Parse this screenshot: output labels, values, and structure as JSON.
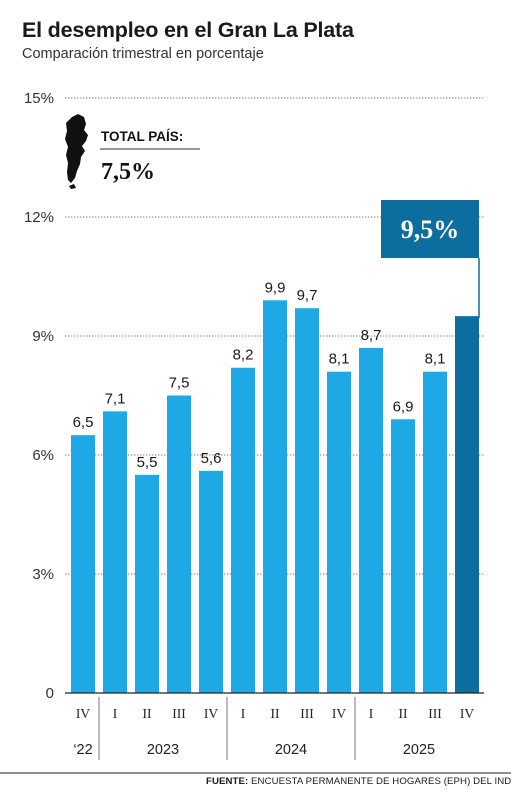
{
  "title": "El desempleo en el Gran La Plata",
  "subtitle": "Comparación trimestral en porcentaje",
  "national": {
    "label": "TOTAL PAÍS:",
    "value": "7,5%"
  },
  "highlight_label": "9,5%",
  "source": {
    "label": "FUENTE:",
    "text": "ENCUESTA PERMANENTE DE HOGARES (EPH) DEL INDEC"
  },
  "colors": {
    "bar": "#1fa8e6",
    "highlight": "#0b6e9e",
    "text": "#1a1a1a",
    "grid": "#555555"
  },
  "icons": [
    "argentina-map-icon"
  ],
  "chart_data": {
    "type": "bar",
    "ylim": [
      0,
      15
    ],
    "yticks": [
      {
        "value": 0,
        "label": "0"
      },
      {
        "value": 3,
        "label": "3%"
      },
      {
        "value": 6,
        "label": "6%"
      },
      {
        "value": 9,
        "label": "9%"
      },
      {
        "value": 12,
        "label": "12%"
      },
      {
        "value": 15,
        "label": "15%"
      }
    ],
    "categories": [
      "IV",
      "I",
      "II",
      "III",
      "IV",
      "I",
      "II",
      "III",
      "IV",
      "I",
      "II",
      "III",
      "IV"
    ],
    "values": [
      6.5,
      7.1,
      5.5,
      7.5,
      5.6,
      8.2,
      9.9,
      9.7,
      8.1,
      8.7,
      6.9,
      8.1,
      9.5
    ],
    "value_labels": [
      "6,5",
      "7,1",
      "5,5",
      "7,5",
      "5,6",
      "8,2",
      "9,9",
      "9,7",
      "8,1",
      "8,7",
      "6,9",
      "8,1",
      ""
    ],
    "highlight_index": 12,
    "year_groups": [
      {
        "label": "‘22",
        "start": 0,
        "end": 0
      },
      {
        "label": "2023",
        "start": 1,
        "end": 4
      },
      {
        "label": "2024",
        "start": 5,
        "end": 8
      },
      {
        "label": "2025",
        "start": 9,
        "end": 12
      }
    ],
    "reference_value": 7.5,
    "grid": true
  }
}
